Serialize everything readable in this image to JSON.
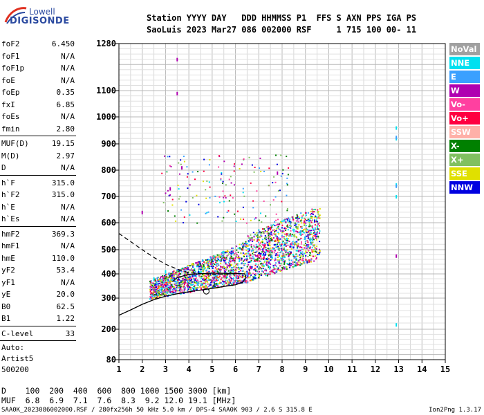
{
  "logo": {
    "line1": "Lowell",
    "line2": "DIGISONDE"
  },
  "header": {
    "line1": "Station YYYY DAY   DDD HHMMSS P1  FFS S AXN PPS IGA PS",
    "line2": "SaoLuis 2023 Mar27 086 002000 RSF     1 715 100 00- 11"
  },
  "params_group1": [
    {
      "name": "foF2",
      "value": "6.450"
    },
    {
      "name": "foF1",
      "value": "N/A"
    },
    {
      "name": "foF1p",
      "value": "N/A"
    },
    {
      "name": "foE",
      "value": "N/A"
    },
    {
      "name": "foEp",
      "value": "0.35"
    },
    {
      "name": "fxI",
      "value": "6.85"
    },
    {
      "name": "foEs",
      "value": "N/A"
    },
    {
      "name": "fmin",
      "value": "2.80"
    }
  ],
  "params_group2": [
    {
      "name": "MUF(D)",
      "value": "19.15"
    },
    {
      "name": "M(D)",
      "value": "2.97"
    },
    {
      "name": "D",
      "value": "N/A"
    }
  ],
  "params_group3": [
    {
      "name": "h`F",
      "value": "315.0"
    },
    {
      "name": "h`F2",
      "value": "315.0"
    },
    {
      "name": "h`E",
      "value": "N/A"
    },
    {
      "name": "h`Es",
      "value": "N/A"
    }
  ],
  "params_group4": [
    {
      "name": "hmF2",
      "value": "369.3"
    },
    {
      "name": "hmF1",
      "value": "N/A"
    },
    {
      "name": "hmE",
      "value": "110.0"
    },
    {
      "name": "yF2",
      "value": "53.4"
    },
    {
      "name": "yF1",
      "value": "N/A"
    },
    {
      "name": "yE",
      "value": "20.0"
    },
    {
      "name": "B0",
      "value": "62.5"
    },
    {
      "name": "B1",
      "value": "1.22"
    }
  ],
  "params_group5": [
    {
      "name": "C-level",
      "value": "33"
    }
  ],
  "auto": {
    "line1": "Auto:",
    "line2": "Artist5",
    "line3": "500200"
  },
  "legend": [
    {
      "label": "NoVal",
      "color": "#a0a0a0"
    },
    {
      "label": "NNE",
      "color": "#00e0f0"
    },
    {
      "label": "E",
      "color": "#3aa0ff"
    },
    {
      "label": "W",
      "color": "#b000b0"
    },
    {
      "label": "Vo-",
      "color": "#ff40a0"
    },
    {
      "label": "Vo+",
      "color": "#ff0040"
    },
    {
      "label": "SSW",
      "color": "#ffb0a8"
    },
    {
      "label": "X-",
      "color": "#008000"
    },
    {
      "label": "X+",
      "color": "#80c060"
    },
    {
      "label": "SSE",
      "color": "#e0e000"
    },
    {
      "label": "NNW",
      "color": "#0000e0"
    }
  ],
  "dmuf": {
    "line1": "D    100  200  400  600  800 1000 1500 3000 [km]",
    "line2": "MUF  6.8  6.9  7.1  7.6  8.3  9.2 12.0 19.1 [MHz]"
  },
  "footer": {
    "left": "SAA0K_2023086002000.RSF / 280fx256h 50 kHz 5.0 km / DPS-4 SAA0K 903 / 2.6 S 315.8 E",
    "right": "Ion2Png 1.3.17"
  },
  "chart_data": {
    "type": "scatter",
    "title": "",
    "xlabel": "",
    "ylabel": "",
    "xlim": [
      1,
      15
    ],
    "ylim": [
      80,
      1300
    ],
    "x_ticks": [
      1,
      2,
      3,
      4,
      5,
      6,
      7,
      8,
      9,
      10,
      11,
      12,
      13,
      14,
      15
    ],
    "y_ticks": [
      80,
      200,
      300,
      400,
      500,
      600,
      700,
      800,
      900,
      1000,
      1100,
      1280
    ],
    "grid": true,
    "legend_position": "right",
    "series": [
      {
        "name": "NNE",
        "color": "#00e0f0",
        "points": [
          [
            12.9,
            960
          ],
          [
            12.9,
            920
          ],
          [
            12.9,
            745
          ],
          [
            12.9,
            700
          ],
          [
            12.9,
            215
          ],
          [
            9.2,
            540
          ],
          [
            8.8,
            560
          ],
          [
            3.0,
            410
          ],
          [
            2.5,
            380
          ]
        ]
      },
      {
        "name": "E",
        "color": "#3aa0ff",
        "points": [
          [
            12.9,
            925
          ],
          [
            12.9,
            740
          ],
          [
            6.5,
            400
          ],
          [
            9.3,
            540
          ],
          [
            9.0,
            545
          ]
        ]
      },
      {
        "name": "W",
        "color": "#b000b0",
        "points": [
          [
            3.5,
            1220
          ],
          [
            3.5,
            1090
          ],
          [
            3.7,
            810
          ],
          [
            3.2,
            730
          ],
          [
            7.8,
            790
          ],
          [
            12.9,
            475
          ],
          [
            2.0,
            640
          ]
        ]
      },
      {
        "name": "Vo+",
        "color": "#ff0040",
        "points": [
          [
            7.8,
            540
          ],
          [
            7.5,
            580
          ]
        ]
      }
    ],
    "trace_solid": [
      [
        1,
        245
      ],
      [
        1.5,
        262
      ],
      [
        2,
        280
      ],
      [
        2.5,
        295
      ],
      [
        3,
        308
      ],
      [
        3.5,
        318
      ],
      [
        4,
        326
      ],
      [
        4.5,
        333
      ],
      [
        5,
        340
      ],
      [
        5.5,
        348
      ],
      [
        6,
        355
      ],
      [
        6.3,
        365
      ],
      [
        6.45,
        385
      ],
      [
        6.4,
        400
      ],
      [
        6,
        402
      ],
      [
        5,
        403
      ],
      [
        4,
        398
      ],
      [
        3.5,
        385
      ],
      [
        3.3,
        368
      ]
    ],
    "trace_dashed": [
      [
        1,
        560
      ],
      [
        1.5,
        530
      ],
      [
        2,
        500
      ],
      [
        2.5,
        468
      ],
      [
        3,
        440
      ],
      [
        3.5,
        420
      ],
      [
        4,
        405
      ],
      [
        5,
        398
      ],
      [
        6,
        400
      ]
    ]
  }
}
